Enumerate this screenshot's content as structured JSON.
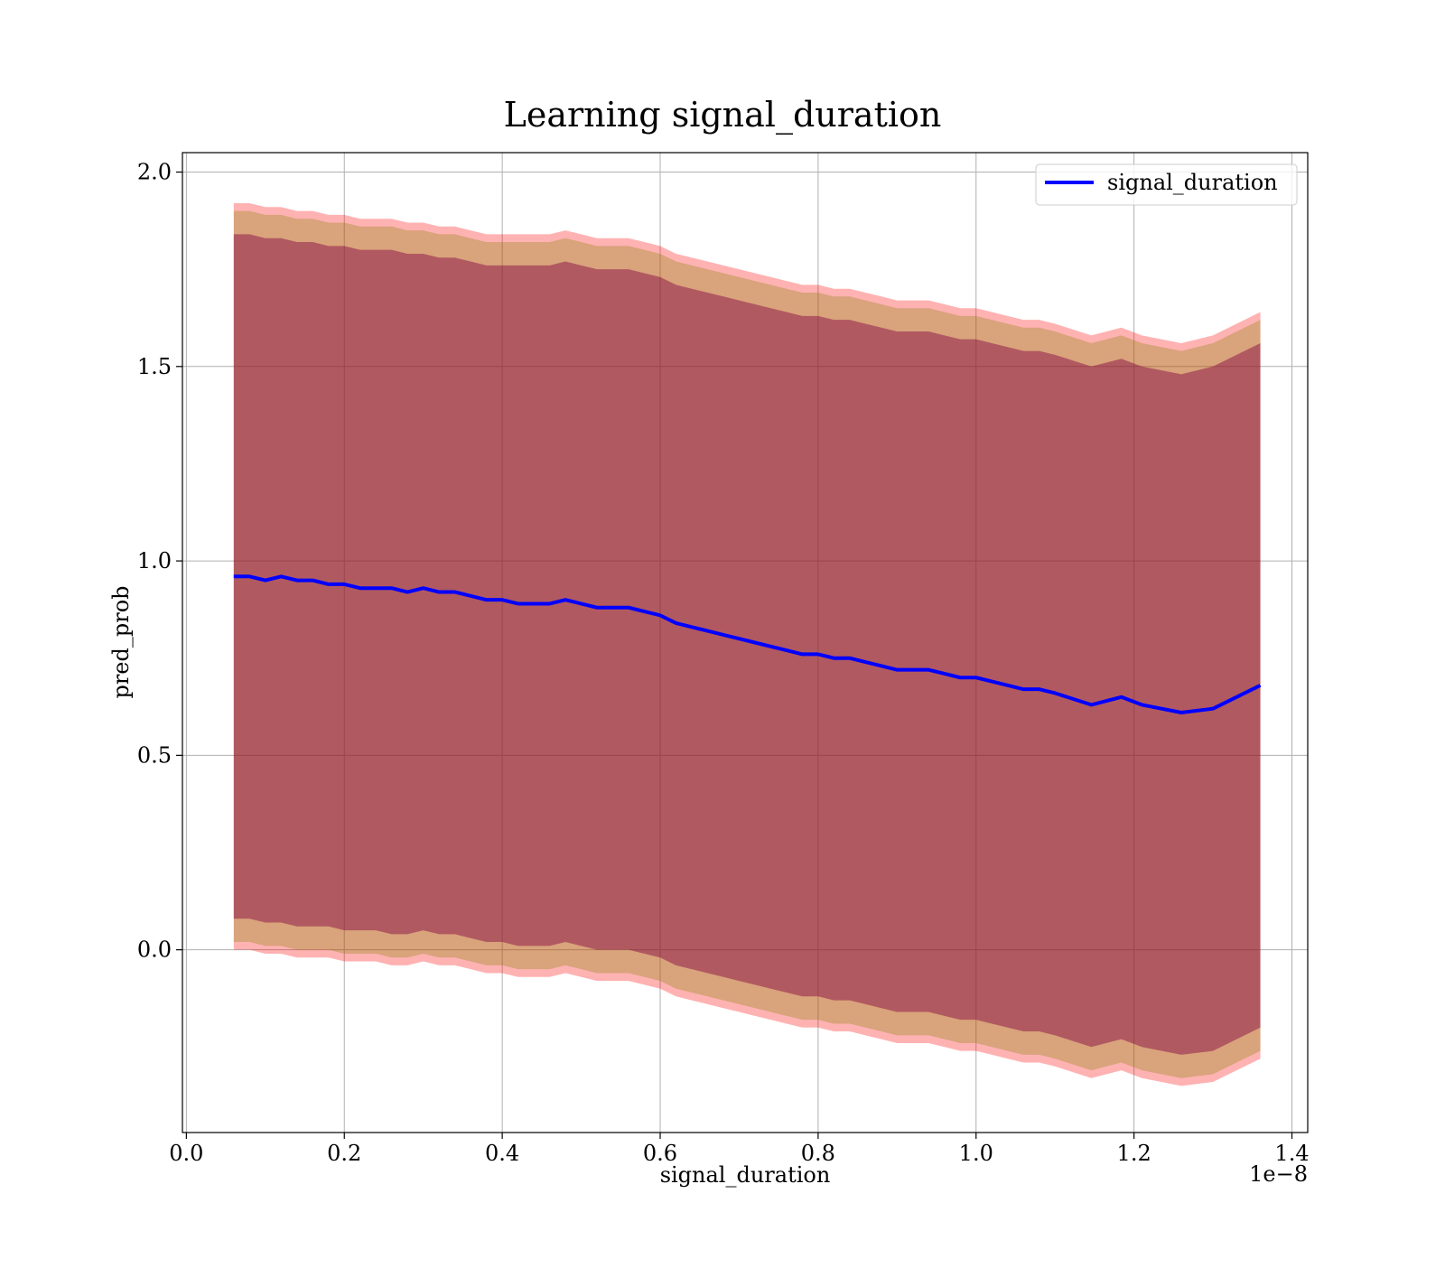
{
  "chart_data": {
    "type": "line",
    "title": "Learning signal_duration",
    "xlabel": "signal_duration",
    "ylabel": "pred_prob",
    "x_offset_label": "1e−8",
    "xlim": [
      -0.005,
      1.42
    ],
    "ylim": [
      -0.47,
      2.05
    ],
    "x_ticks": [
      0.0,
      0.2,
      0.4,
      0.6,
      0.8,
      1.0,
      1.2,
      1.4
    ],
    "x_tick_labels": [
      "0.0",
      "0.2",
      "0.4",
      "0.6",
      "0.8",
      "1.0",
      "1.2",
      "1.4"
    ],
    "y_ticks": [
      0.0,
      0.5,
      1.0,
      1.5,
      2.0
    ],
    "y_tick_labels": [
      "0.0",
      "0.5",
      "1.0",
      "1.5",
      "2.0"
    ],
    "grid": true,
    "legend_position": "top-right",
    "x": [
      0.06,
      0.08,
      0.1,
      0.12,
      0.14,
      0.16,
      0.18,
      0.2,
      0.22,
      0.24,
      0.26,
      0.28,
      0.3,
      0.32,
      0.34,
      0.36,
      0.38,
      0.4,
      0.42,
      0.44,
      0.46,
      0.48,
      0.5,
      0.52,
      0.54,
      0.56,
      0.58,
      0.6,
      0.62,
      0.64,
      0.66,
      0.68,
      0.7,
      0.72,
      0.74,
      0.76,
      0.78,
      0.8,
      0.82,
      0.84,
      0.86,
      0.88,
      0.9,
      0.92,
      0.94,
      0.96,
      0.98,
      1.0,
      1.02,
      1.04,
      1.06,
      1.08,
      1.1,
      1.146,
      1.184,
      1.21,
      1.26,
      1.3,
      1.36
    ],
    "series": [
      {
        "name": "signal_duration",
        "color": "#0000ff",
        "values": [
          0.96,
          0.96,
          0.95,
          0.96,
          0.95,
          0.95,
          0.94,
          0.94,
          0.93,
          0.93,
          0.93,
          0.92,
          0.93,
          0.92,
          0.92,
          0.91,
          0.9,
          0.9,
          0.89,
          0.89,
          0.89,
          0.9,
          0.89,
          0.88,
          0.88,
          0.88,
          0.87,
          0.86,
          0.84,
          0.83,
          0.82,
          0.81,
          0.8,
          0.79,
          0.78,
          0.77,
          0.76,
          0.76,
          0.75,
          0.75,
          0.74,
          0.73,
          0.72,
          0.72,
          0.72,
          0.71,
          0.7,
          0.7,
          0.69,
          0.68,
          0.67,
          0.67,
          0.66,
          0.63,
          0.65,
          0.63,
          0.61,
          0.62,
          0.68
        ]
      }
    ],
    "bands": [
      {
        "color": "#ff0000",
        "opacity": 0.3,
        "upper": [
          1.92,
          1.92,
          1.91,
          1.91,
          1.9,
          1.9,
          1.89,
          1.89,
          1.88,
          1.88,
          1.88,
          1.87,
          1.87,
          1.86,
          1.86,
          1.85,
          1.84,
          1.84,
          1.84,
          1.84,
          1.84,
          1.85,
          1.84,
          1.83,
          1.83,
          1.83,
          1.82,
          1.81,
          1.79,
          1.78,
          1.77,
          1.76,
          1.75,
          1.74,
          1.73,
          1.72,
          1.71,
          1.71,
          1.7,
          1.7,
          1.69,
          1.68,
          1.67,
          1.67,
          1.67,
          1.66,
          1.65,
          1.65,
          1.64,
          1.63,
          1.62,
          1.62,
          1.61,
          1.58,
          1.6,
          1.58,
          1.56,
          1.58,
          1.64
        ],
        "lower": [
          0.0,
          0.0,
          -0.01,
          -0.01,
          -0.02,
          -0.02,
          -0.02,
          -0.03,
          -0.03,
          -0.03,
          -0.04,
          -0.04,
          -0.03,
          -0.04,
          -0.04,
          -0.05,
          -0.06,
          -0.06,
          -0.07,
          -0.07,
          -0.07,
          -0.06,
          -0.07,
          -0.08,
          -0.08,
          -0.08,
          -0.09,
          -0.1,
          -0.12,
          -0.13,
          -0.14,
          -0.15,
          -0.16,
          -0.17,
          -0.18,
          -0.19,
          -0.2,
          -0.2,
          -0.21,
          -0.21,
          -0.22,
          -0.23,
          -0.24,
          -0.24,
          -0.24,
          -0.25,
          -0.26,
          -0.26,
          -0.27,
          -0.28,
          -0.29,
          -0.29,
          -0.3,
          -0.33,
          -0.31,
          -0.33,
          -0.35,
          -0.34,
          -0.28
        ]
      },
      {
        "color": "#808000",
        "opacity": 0.3,
        "upper": [
          1.9,
          1.9,
          1.89,
          1.89,
          1.88,
          1.88,
          1.87,
          1.87,
          1.86,
          1.86,
          1.86,
          1.85,
          1.85,
          1.84,
          1.84,
          1.83,
          1.82,
          1.82,
          1.82,
          1.82,
          1.82,
          1.83,
          1.82,
          1.81,
          1.81,
          1.81,
          1.8,
          1.79,
          1.77,
          1.76,
          1.75,
          1.74,
          1.73,
          1.72,
          1.71,
          1.7,
          1.69,
          1.69,
          1.68,
          1.68,
          1.67,
          1.66,
          1.65,
          1.65,
          1.65,
          1.64,
          1.63,
          1.63,
          1.62,
          1.61,
          1.6,
          1.6,
          1.59,
          1.56,
          1.58,
          1.56,
          1.54,
          1.56,
          1.62
        ],
        "lower": [
          0.02,
          0.02,
          0.01,
          0.01,
          0.0,
          0.0,
          0.0,
          -0.01,
          -0.01,
          -0.01,
          -0.02,
          -0.02,
          -0.01,
          -0.02,
          -0.02,
          -0.03,
          -0.04,
          -0.04,
          -0.05,
          -0.05,
          -0.05,
          -0.04,
          -0.05,
          -0.06,
          -0.06,
          -0.06,
          -0.07,
          -0.08,
          -0.1,
          -0.11,
          -0.12,
          -0.13,
          -0.14,
          -0.15,
          -0.16,
          -0.17,
          -0.18,
          -0.18,
          -0.19,
          -0.19,
          -0.2,
          -0.21,
          -0.22,
          -0.22,
          -0.22,
          -0.23,
          -0.24,
          -0.24,
          -0.25,
          -0.26,
          -0.27,
          -0.27,
          -0.28,
          -0.31,
          -0.29,
          -0.31,
          -0.33,
          -0.32,
          -0.26
        ]
      },
      {
        "color": "#800040",
        "opacity": 0.45,
        "upper": [
          1.84,
          1.84,
          1.83,
          1.83,
          1.82,
          1.82,
          1.81,
          1.81,
          1.8,
          1.8,
          1.8,
          1.79,
          1.79,
          1.78,
          1.78,
          1.77,
          1.76,
          1.76,
          1.76,
          1.76,
          1.76,
          1.77,
          1.76,
          1.75,
          1.75,
          1.75,
          1.74,
          1.73,
          1.71,
          1.7,
          1.69,
          1.68,
          1.67,
          1.66,
          1.65,
          1.64,
          1.63,
          1.63,
          1.62,
          1.62,
          1.61,
          1.6,
          1.59,
          1.59,
          1.59,
          1.58,
          1.57,
          1.57,
          1.56,
          1.55,
          1.54,
          1.54,
          1.53,
          1.5,
          1.52,
          1.5,
          1.48,
          1.5,
          1.56
        ],
        "lower": [
          0.08,
          0.08,
          0.07,
          0.07,
          0.06,
          0.06,
          0.06,
          0.05,
          0.05,
          0.05,
          0.04,
          0.04,
          0.05,
          0.04,
          0.04,
          0.03,
          0.02,
          0.02,
          0.01,
          0.01,
          0.01,
          0.02,
          0.01,
          0.0,
          0.0,
          0.0,
          -0.01,
          -0.02,
          -0.04,
          -0.05,
          -0.06,
          -0.07,
          -0.08,
          -0.09,
          -0.1,
          -0.11,
          -0.12,
          -0.12,
          -0.13,
          -0.13,
          -0.14,
          -0.15,
          -0.16,
          -0.16,
          -0.16,
          -0.17,
          -0.18,
          -0.18,
          -0.19,
          -0.2,
          -0.21,
          -0.21,
          -0.22,
          -0.25,
          -0.23,
          -0.25,
          -0.27,
          -0.26,
          -0.2
        ]
      }
    ]
  }
}
